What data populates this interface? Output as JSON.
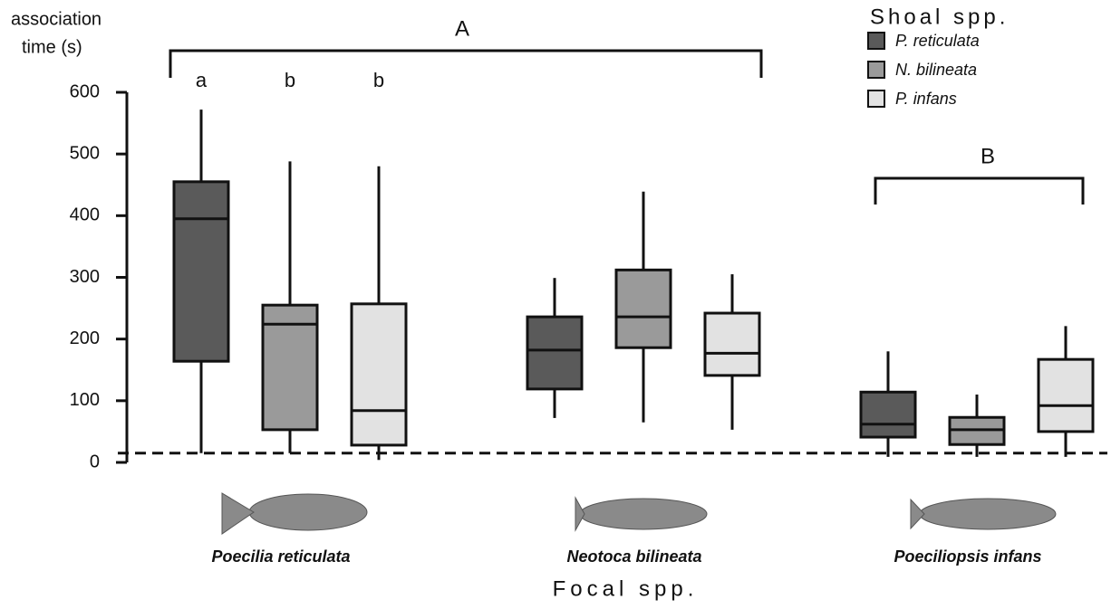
{
  "chart_data": {
    "type": "box",
    "ylabel": [
      "association",
      "time (s)"
    ],
    "xlabel": "Focal spp.",
    "categories": [
      "Poecilia reticulata",
      "Neotoca bilineata",
      "Poeciliopsis infans"
    ],
    "legend_title": "Shoal spp.",
    "series": [
      {
        "name": "P. reticulata",
        "color": "#5a5a5a",
        "values": [
          {
            "min": 15,
            "q1": 164,
            "median": 395,
            "q3": 455,
            "max": 572
          },
          {
            "min": 72,
            "q1": 119,
            "median": 182,
            "q3": 236,
            "max": 299
          },
          {
            "min": 9,
            "q1": 41,
            "median": 62,
            "q3": 114,
            "max": 180
          }
        ]
      },
      {
        "name": "N. bilineata",
        "color": "#9a9a9a",
        "values": [
          {
            "min": 15,
            "q1": 53,
            "median": 224,
            "q3": 255,
            "max": 488
          },
          {
            "min": 65,
            "q1": 186,
            "median": 236,
            "q3": 312,
            "max": 439
          },
          {
            "min": 9,
            "q1": 29,
            "median": 53,
            "q3": 73,
            "max": 110
          }
        ]
      },
      {
        "name": "P. infans",
        "color": "#e2e2e2",
        "values": [
          {
            "min": 4,
            "q1": 28,
            "median": 84,
            "q3": 257,
            "max": 480
          },
          {
            "min": 53,
            "q1": 141,
            "median": 177,
            "q3": 242,
            "max": 305
          },
          {
            "min": 9,
            "q1": 50,
            "median": 92,
            "q3": 167,
            "max": 221
          }
        ]
      }
    ],
    "ylim": [
      0,
      600
    ],
    "yticks": [
      0,
      100,
      200,
      300,
      400,
      500,
      600
    ],
    "reference_line": 15,
    "brackets": [
      "A",
      "B"
    ],
    "letters": [
      "a",
      "b",
      "b"
    ]
  }
}
